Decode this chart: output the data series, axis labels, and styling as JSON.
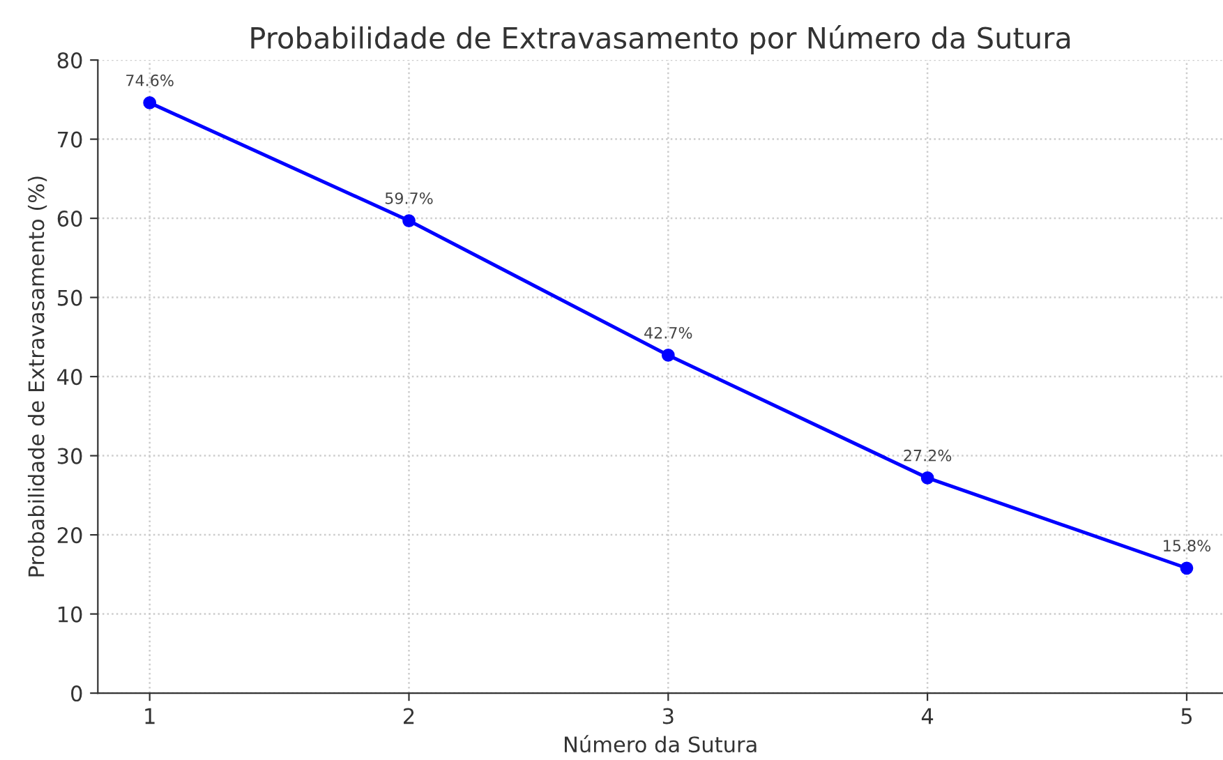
{
  "chart_data": {
    "type": "line",
    "title": "Probabilidade de Extravasamento por Número da Sutura",
    "xlabel": "Número da Sutura",
    "ylabel": "Probabilidade de Extravasamento (%)",
    "x": [
      1,
      2,
      3,
      4,
      5
    ],
    "series": [
      {
        "color": "#0000ff",
        "values": [
          74.6,
          59.7,
          42.7,
          27.2,
          15.8
        ],
        "value_labels": [
          "74.6%",
          "59.7%",
          "42.7%",
          "27.2%",
          "15.8%"
        ]
      }
    ],
    "xlim": [
      0.8,
      5.14
    ],
    "xticks": [
      1,
      2,
      3,
      4,
      5
    ],
    "ylim": [
      0,
      80
    ],
    "yticks": [
      0,
      10,
      20,
      30,
      40,
      50,
      60,
      70,
      80
    ],
    "grid": true,
    "marker": "circle",
    "line_style": "solid"
  }
}
